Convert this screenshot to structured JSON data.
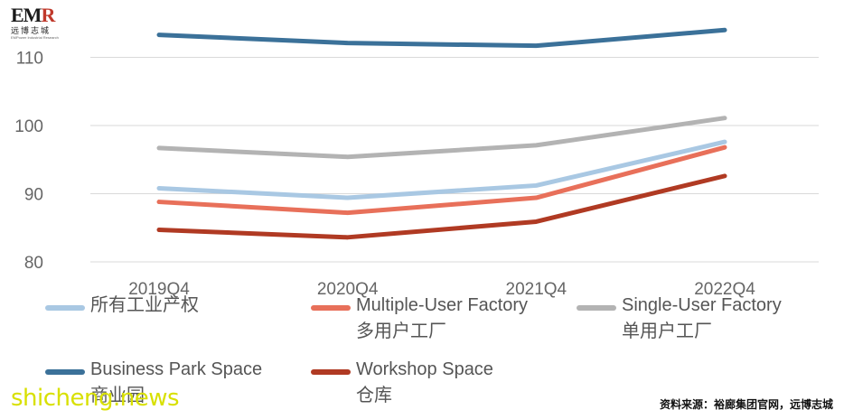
{
  "logo": {
    "mark": "EMR",
    "cn": "远博志城",
    "en": "EMPower Industrial Research"
  },
  "chart_data": {
    "type": "line",
    "categories": [
      "2019Q4",
      "2020Q4",
      "2021Q4",
      "2022Q4"
    ],
    "ylim": [
      80,
      114
    ],
    "yticks": [
      80,
      90,
      100,
      110
    ],
    "grid": true,
    "legend_position": "bottom",
    "series": [
      {
        "key": "all",
        "name": "所有工业产权",
        "sub": "",
        "color": "#a9c8e3",
        "values": [
          90.8,
          89.4,
          91.2,
          97.6
        ]
      },
      {
        "key": "multi",
        "name": "Multiple-User Factory",
        "sub": "多用户工厂",
        "color": "#e8705a",
        "values": [
          88.8,
          87.2,
          89.4,
          96.8
        ]
      },
      {
        "key": "single",
        "name": "Single-User Factory",
        "sub": "单用户工厂",
        "color": "#b3b3b3",
        "values": [
          96.7,
          95.4,
          97.1,
          101.1
        ]
      },
      {
        "key": "bps",
        "name": "Business Park Space",
        "sub": "商业园",
        "color": "#3b7199",
        "values": [
          113.3,
          112.1,
          111.7,
          114.0
        ]
      },
      {
        "key": "workshop",
        "name": "Workshop Space",
        "sub": "仓库",
        "color": "#b03a23",
        "values": [
          84.7,
          83.6,
          85.9,
          92.6
        ]
      }
    ]
  },
  "source": "资料来源：裕廊集团官网，远博志城",
  "watermark": "shicheng.news"
}
